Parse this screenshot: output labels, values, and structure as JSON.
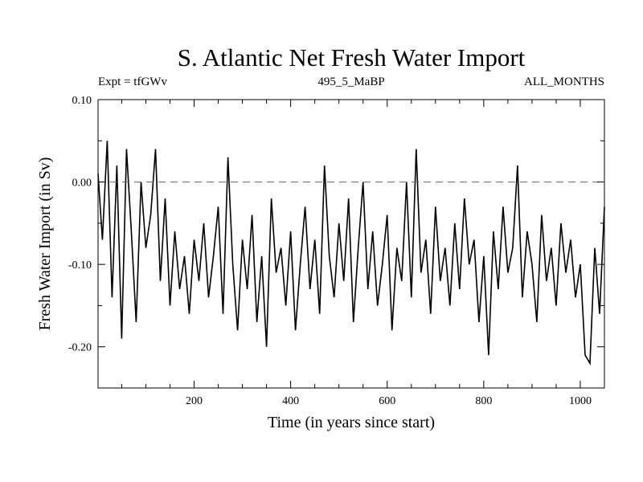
{
  "chart_data": {
    "type": "line",
    "title": "S. Atlantic Net Fresh Water Import",
    "subtitle_left": "Expt = tfGWv",
    "subtitle_center": "495_5_MaBP",
    "subtitle_right": "ALL_MONTHS",
    "xlabel": "Time (in years since start)",
    "ylabel": "Fresh Water Import (in Sv)",
    "xlim": [
      1,
      1050
    ],
    "ylim": [
      -0.25,
      0.1
    ],
    "x_ticks": [
      200,
      400,
      600,
      800,
      1000
    ],
    "x_tick_labels": [
      "200",
      "400",
      "600",
      "800",
      "1000"
    ],
    "y_ticks": [
      0.1,
      0.0,
      -0.1,
      -0.2
    ],
    "y_tick_labels": [
      "0.10",
      "0.00",
      "-0.10",
      "-0.20"
    ],
    "reference_line": {
      "y": 0.0,
      "style": "dashed"
    },
    "series": [
      {
        "name": "Net Fresh Water Import",
        "x": [
          1,
          10,
          20,
          30,
          40,
          50,
          60,
          70,
          80,
          90,
          100,
          110,
          120,
          130,
          140,
          150,
          160,
          170,
          180,
          190,
          200,
          210,
          220,
          230,
          240,
          250,
          260,
          270,
          280,
          290,
          300,
          310,
          320,
          330,
          340,
          350,
          360,
          370,
          380,
          390,
          400,
          410,
          420,
          430,
          440,
          450,
          460,
          470,
          480,
          490,
          500,
          510,
          520,
          530,
          540,
          550,
          560,
          570,
          580,
          590,
          600,
          610,
          620,
          630,
          640,
          650,
          660,
          670,
          680,
          690,
          700,
          710,
          720,
          730,
          740,
          750,
          760,
          770,
          780,
          790,
          800,
          810,
          820,
          830,
          840,
          850,
          860,
          870,
          880,
          890,
          900,
          910,
          920,
          930,
          940,
          950,
          960,
          970,
          980,
          990,
          1000,
          1010,
          1020,
          1030,
          1040,
          1050
        ],
        "values": [
          0.01,
          -0.07,
          0.05,
          -0.14,
          0.02,
          -0.19,
          0.04,
          -0.06,
          -0.17,
          0.0,
          -0.08,
          -0.04,
          0.04,
          -0.12,
          -0.02,
          -0.15,
          -0.06,
          -0.13,
          -0.09,
          -0.16,
          -0.07,
          -0.12,
          -0.05,
          -0.14,
          -0.09,
          -0.03,
          -0.16,
          0.03,
          -0.1,
          -0.18,
          -0.07,
          -0.13,
          -0.04,
          -0.17,
          -0.09,
          -0.2,
          -0.02,
          -0.11,
          -0.08,
          -0.15,
          -0.06,
          -0.18,
          -0.1,
          -0.03,
          -0.13,
          -0.07,
          -0.16,
          0.02,
          -0.09,
          -0.14,
          -0.05,
          -0.12,
          -0.02,
          -0.17,
          -0.08,
          0.0,
          -0.13,
          -0.06,
          -0.15,
          -0.1,
          -0.04,
          -0.18,
          -0.08,
          -0.12,
          0.0,
          -0.14,
          0.04,
          -0.11,
          -0.07,
          -0.16,
          -0.03,
          -0.12,
          -0.08,
          -0.15,
          -0.05,
          -0.13,
          -0.02,
          -0.1,
          -0.07,
          -0.17,
          -0.09,
          -0.21,
          -0.06,
          -0.13,
          -0.03,
          -0.11,
          -0.08,
          0.02,
          -0.14,
          -0.06,
          -0.1,
          -0.17,
          -0.04,
          -0.12,
          -0.08,
          -0.15,
          -0.05,
          -0.11,
          -0.07,
          -0.14,
          -0.1,
          -0.21,
          -0.22,
          -0.08,
          -0.16,
          -0.03
        ]
      }
    ]
  }
}
